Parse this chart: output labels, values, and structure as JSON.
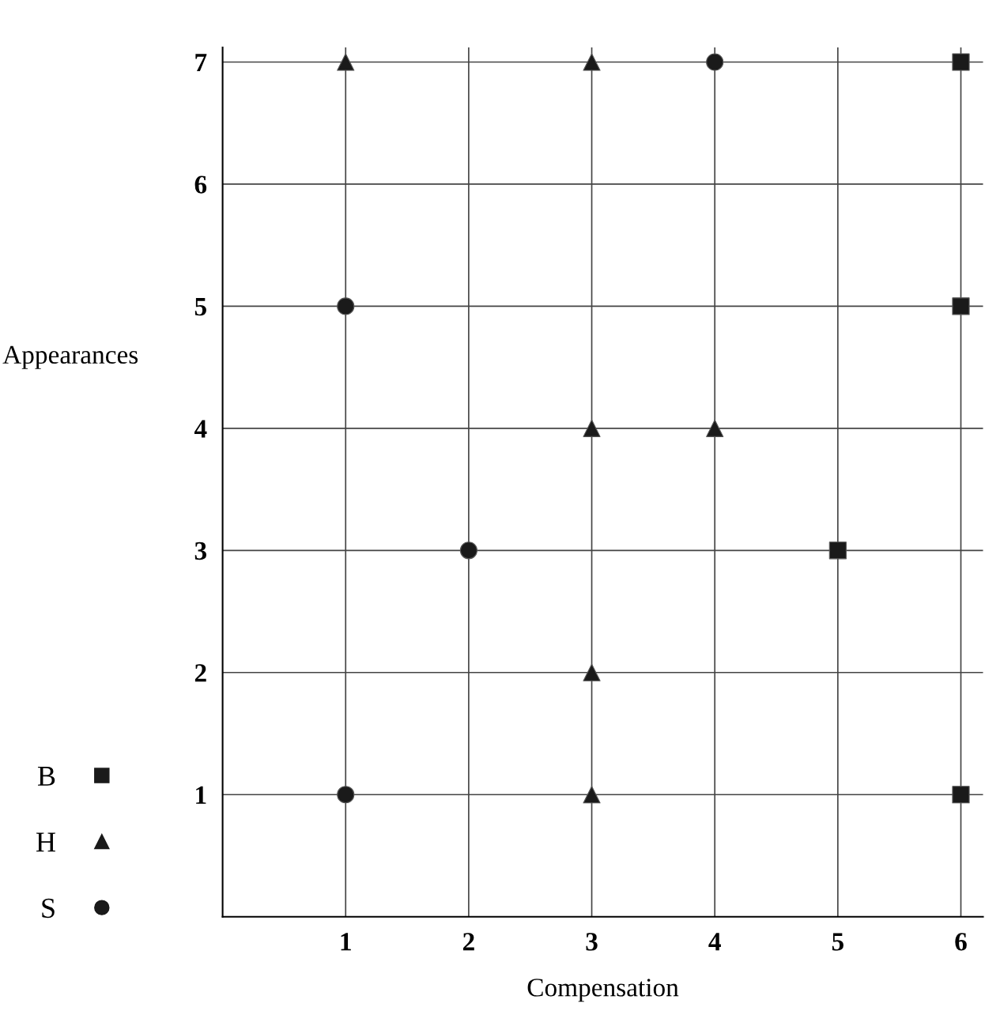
{
  "chart_data": {
    "type": "scatter",
    "xlabel": "Compensation",
    "ylabel": "Appearances",
    "xlim": [
      0,
      6.18
    ],
    "ylim": [
      0,
      7.12
    ],
    "xticks": [
      1,
      2,
      3,
      4,
      5,
      6
    ],
    "yticks": [
      1,
      2,
      3,
      4,
      5,
      6,
      7
    ],
    "grid": true,
    "legend": "left",
    "series": [
      {
        "name": "B",
        "color": "#1a1a1a",
        "marker": "square",
        "x": [
          6,
          6,
          5,
          6
        ],
        "values": [
          7,
          5,
          3,
          1
        ]
      },
      {
        "name": "H",
        "color": "#1a1a1a",
        "marker": "triangle",
        "x": [
          1,
          3,
          3,
          4,
          3,
          3
        ],
        "values": [
          7,
          7,
          4,
          4,
          2,
          1
        ]
      },
      {
        "name": "S",
        "color": "#1a1a1a",
        "marker": "circle",
        "x": [
          4,
          1,
          2,
          1
        ],
        "values": [
          7,
          5,
          3,
          1
        ]
      }
    ]
  }
}
